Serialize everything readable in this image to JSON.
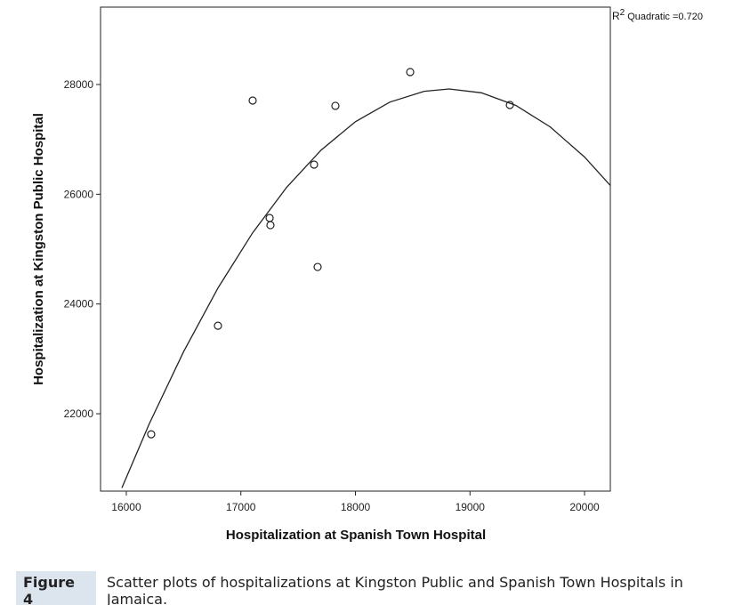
{
  "chart_data": {
    "type": "scatter",
    "x_label": "Hospitalization at Spanish Town Hospital",
    "y_label": "Hospitalization at Kingston Public Hospital",
    "x": [
      16217,
      16800,
      17103,
      17251,
      17258,
      17639,
      17670,
      17825,
      18478,
      19348
    ],
    "y": [
      21626,
      23604,
      27708,
      25567,
      25437,
      26540,
      24675,
      27611,
      28227,
      27627
    ],
    "xlim": [
      15775,
      20225
    ],
    "ylim": [
      20590,
      29410
    ],
    "xticks": [
      16000,
      17000,
      18000,
      19000,
      20000
    ],
    "yticks": [
      22000,
      24000,
      26000,
      28000
    ],
    "fit": {
      "x": [
        15961,
        16200,
        16500,
        16800,
        17100,
        17400,
        17700,
        18000,
        18300,
        18600,
        18819,
        19100,
        19400,
        19700,
        20000,
        20225
      ],
      "y": [
        20649,
        21814,
        23133,
        24291,
        25289,
        26127,
        26805,
        27322,
        27679,
        27876,
        27919,
        27849,
        27619,
        27228,
        26678,
        26160
      ]
    },
    "annotation": {
      "base": "R",
      "sup": "2",
      "text": "Quadratic =0.720"
    }
  },
  "caption": {
    "label": "Figure 4",
    "text": "Scatter plots of hospitalizations at Kingston Public and Spanish Town Hospitals in Jamaica."
  }
}
